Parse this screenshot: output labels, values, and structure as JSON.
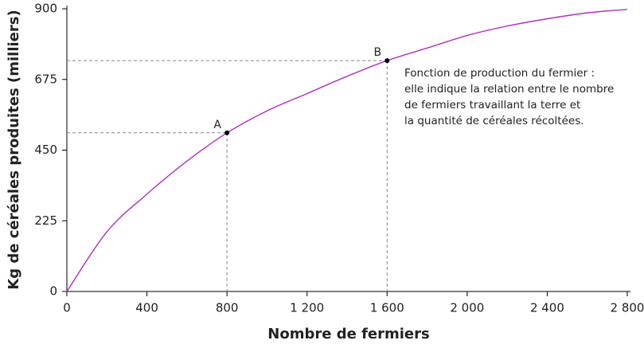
{
  "chart_data": {
    "type": "line",
    "x_label": "Nombre de fermiers",
    "y_label": "Kg de céréales produites (milliers)",
    "x": [
      0,
      200,
      400,
      600,
      800,
      1000,
      1200,
      1400,
      1600,
      1800,
      2000,
      2200,
      2400,
      2600,
      2800
    ],
    "series": [
      {
        "name": "Fonction de production du fermier",
        "color": "#b030c0",
        "values": [
          0,
          190,
          310,
          415,
          505,
          575,
          630,
          685,
          735,
          775,
          815,
          845,
          868,
          887,
          898
        ]
      }
    ],
    "points": [
      {
        "label": "A",
        "x": 800,
        "y": 505
      },
      {
        "label": "B",
        "x": 1600,
        "y": 735
      }
    ],
    "annotation": [
      "Fonction de production du fermier :",
      "elle indique la relation entre le nombre",
      "de fermiers travaillant la terre et",
      "la quantité de céréales récoltées."
    ],
    "xlim": [
      0,
      2800
    ],
    "xticks": [
      0,
      400,
      800,
      {
        "value": 1200,
        "label": "1 200"
      },
      {
        "value": 1600,
        "label": "1 600"
      },
      {
        "value": 2000,
        "label": "2 000"
      },
      {
        "value": 2400,
        "label": "2 400"
      },
      {
        "value": 2800,
        "label": "2 800"
      }
    ],
    "ylim": [
      0,
      900
    ],
    "yticks": [
      0,
      225,
      450,
      675,
      900
    ]
  }
}
